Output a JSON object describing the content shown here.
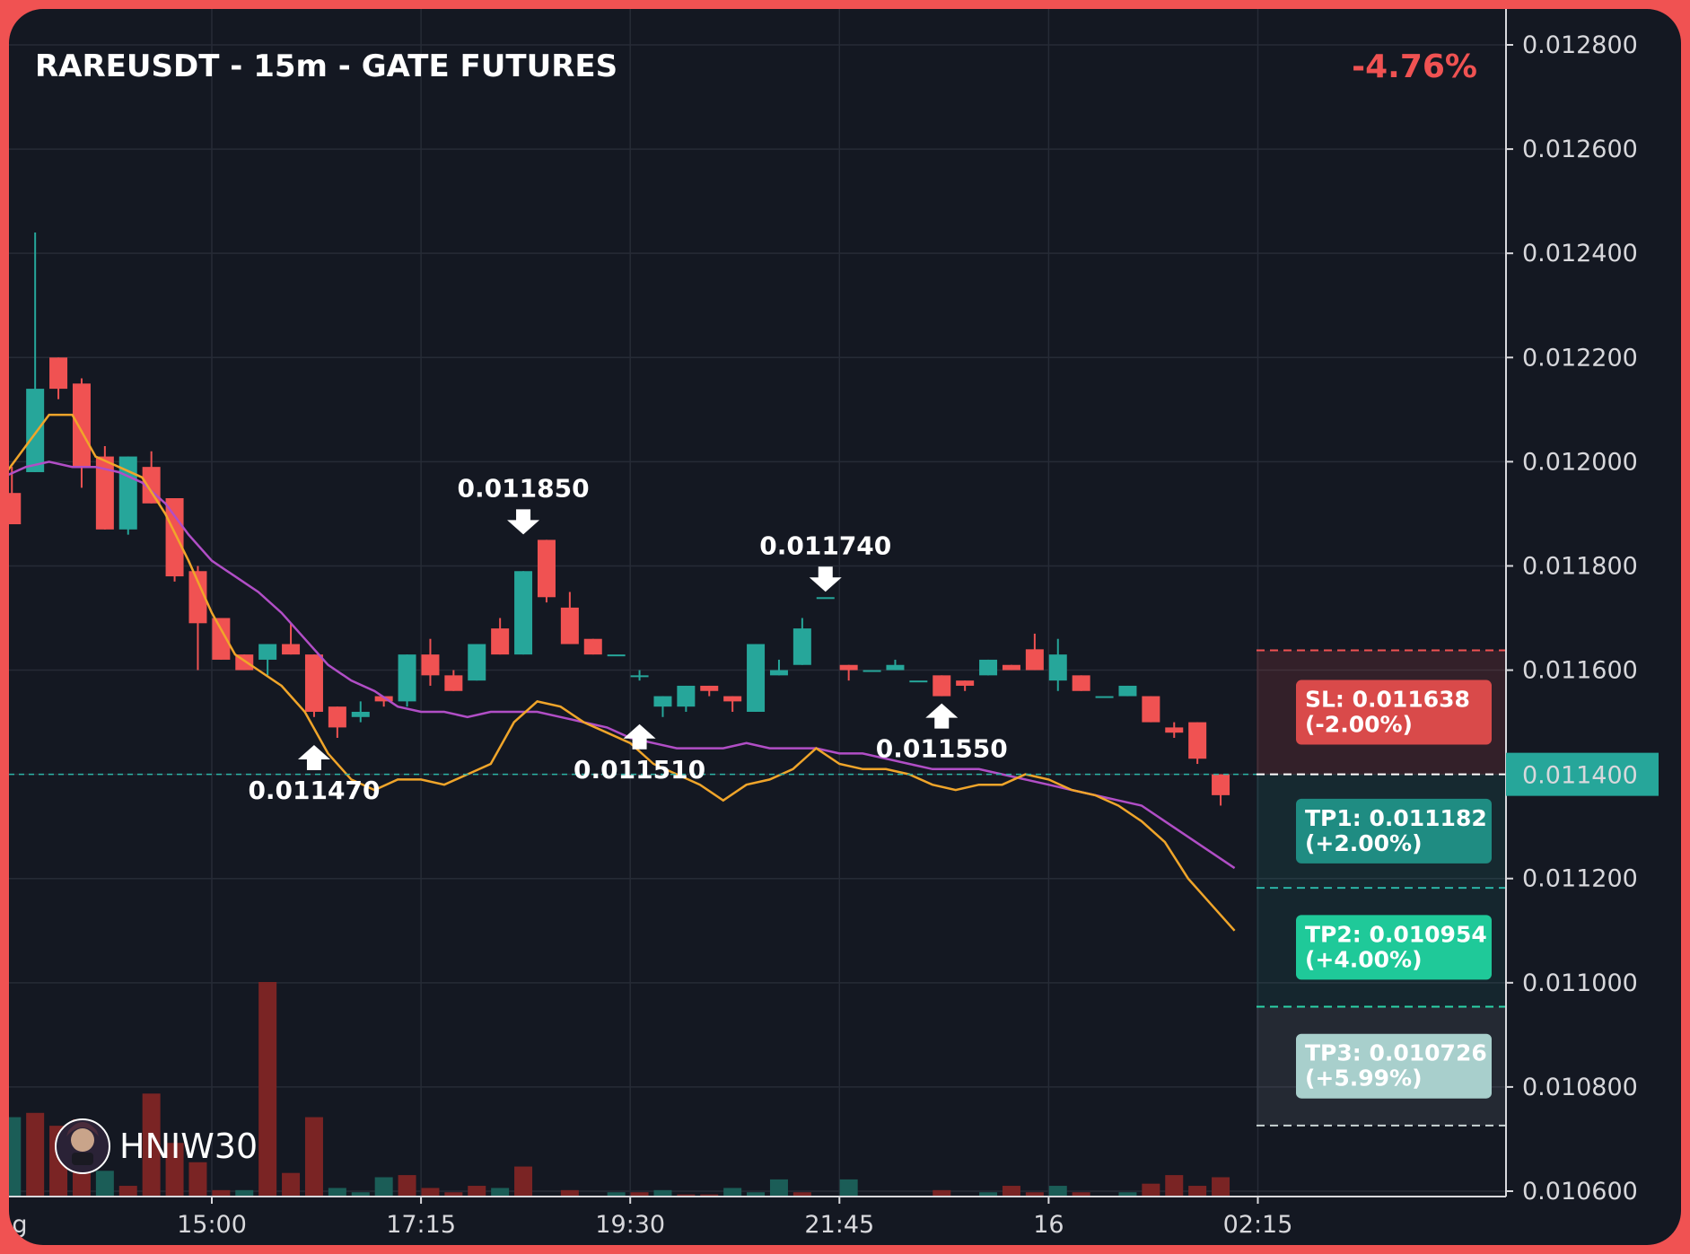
{
  "chart_data": {
    "type": "candlestick",
    "title": "RAREUSDT - 15m - GATE FUTURES",
    "change": "-4.76%",
    "price_axis": {
      "min": 0.0106,
      "max": 0.0128,
      "ticks": [
        "0.012800",
        "0.012600",
        "0.012400",
        "0.012200",
        "0.012000",
        "0.011800",
        "0.011600",
        "0.011400",
        "0.011200",
        "0.011000",
        "0.010800",
        "0.010600"
      ],
      "current_price_label": "0.011400",
      "current_price": 0.0114
    },
    "time_axis": {
      "labels": [
        {
          "text": "g",
          "index": -8.6
        },
        {
          "text": "15:00",
          "index": 0
        },
        {
          "text": "17:15",
          "index": 9
        },
        {
          "text": "19:30",
          "index": 18
        },
        {
          "text": "21:45",
          "index": 27
        },
        {
          "text": "16",
          "index": 36
        },
        {
          "text": "02:15",
          "index": 45
        }
      ]
    },
    "candles": [
      {
        "i": -8.6,
        "o": 0.01194,
        "h": 0.01199,
        "l": 0.01188,
        "c": 0.01188
      },
      {
        "i": -7.6,
        "o": 0.01198,
        "h": 0.01244,
        "l": 0.01198,
        "c": 0.01214
      },
      {
        "i": -6.6,
        "o": 0.0122,
        "h": 0.0122,
        "l": 0.01212,
        "c": 0.01214
      },
      {
        "i": -5.6,
        "o": 0.01215,
        "h": 0.01216,
        "l": 0.01195,
        "c": 0.01199
      },
      {
        "i": -4.6,
        "o": 0.01201,
        "h": 0.01203,
        "l": 0.01187,
        "c": 0.01187
      },
      {
        "i": -3.6,
        "o": 0.01187,
        "h": 0.01201,
        "l": 0.01186,
        "c": 0.01201
      },
      {
        "i": -2.6,
        "o": 0.01199,
        "h": 0.01202,
        "l": 0.01192,
        "c": 0.01192
      },
      {
        "i": -1.6,
        "o": 0.01193,
        "h": 0.01193,
        "l": 0.01177,
        "c": 0.01178
      },
      {
        "i": -0.6,
        "o": 0.01179,
        "h": 0.0118,
        "l": 0.0116,
        "c": 0.01169
      },
      {
        "i": 0.4,
        "o": 0.0117,
        "h": 0.0117,
        "l": 0.01162,
        "c": 0.01162
      },
      {
        "i": 1.4,
        "o": 0.01163,
        "h": 0.01163,
        "l": 0.0116,
        "c": 0.0116
      },
      {
        "i": 2.4,
        "o": 0.01162,
        "h": 0.01165,
        "l": 0.01159,
        "c": 0.01165
      },
      {
        "i": 3.4,
        "o": 0.01165,
        "h": 0.01169,
        "l": 0.01163,
        "c": 0.01163
      },
      {
        "i": 4.4,
        "o": 0.01163,
        "h": 0.01163,
        "l": 0.01151,
        "c": 0.01152
      },
      {
        "i": 5.4,
        "o": 0.01153,
        "h": 0.01153,
        "l": 0.01147,
        "c": 0.01149
      },
      {
        "i": 6.4,
        "o": 0.01151,
        "h": 0.01154,
        "l": 0.0115,
        "c": 0.01152
      },
      {
        "i": 7.4,
        "o": 0.01155,
        "h": 0.01155,
        "l": 0.01153,
        "c": 0.01154
      },
      {
        "i": 8.4,
        "o": 0.01154,
        "h": 0.01163,
        "l": 0.01153,
        "c": 0.01163
      },
      {
        "i": 9.4,
        "o": 0.01163,
        "h": 0.01166,
        "l": 0.01157,
        "c": 0.01159
      },
      {
        "i": 10.4,
        "o": 0.01159,
        "h": 0.0116,
        "l": 0.01156,
        "c": 0.01156
      },
      {
        "i": 11.4,
        "o": 0.01158,
        "h": 0.01165,
        "l": 0.01158,
        "c": 0.01165
      },
      {
        "i": 12.4,
        "o": 0.01168,
        "h": 0.0117,
        "l": 0.01163,
        "c": 0.01163
      },
      {
        "i": 13.4,
        "o": 0.01163,
        "h": 0.01179,
        "l": 0.01163,
        "c": 0.01179
      },
      {
        "i": 14.4,
        "o": 0.01185,
        "h": 0.01185,
        "l": 0.01173,
        "c": 0.01174
      },
      {
        "i": 15.4,
        "o": 0.01172,
        "h": 0.01175,
        "l": 0.01165,
        "c": 0.01165
      },
      {
        "i": 16.4,
        "o": 0.01166,
        "h": 0.01166,
        "l": 0.01163,
        "c": 0.01163
      },
      {
        "i": 17.4,
        "o": 0.01163,
        "h": 0.01163,
        "l": 0.01163,
        "c": 0.01163
      },
      {
        "i": 18.4,
        "o": 0.01159,
        "h": 0.0116,
        "l": 0.01158,
        "c": 0.01159
      },
      {
        "i": 19.4,
        "o": 0.01153,
        "h": 0.01155,
        "l": 0.01151,
        "c": 0.01155
      },
      {
        "i": 20.4,
        "o": 0.01153,
        "h": 0.01157,
        "l": 0.01152,
        "c": 0.01157
      },
      {
        "i": 21.4,
        "o": 0.01157,
        "h": 0.01157,
        "l": 0.01155,
        "c": 0.01156
      },
      {
        "i": 22.4,
        "o": 0.01155,
        "h": 0.01155,
        "l": 0.01152,
        "c": 0.01154
      },
      {
        "i": 23.4,
        "o": 0.01152,
        "h": 0.01165,
        "l": 0.01152,
        "c": 0.01165
      },
      {
        "i": 24.4,
        "o": 0.01159,
        "h": 0.01162,
        "l": 0.01159,
        "c": 0.0116
      },
      {
        "i": 25.4,
        "o": 0.01161,
        "h": 0.0117,
        "l": 0.01161,
        "c": 0.01168
      },
      {
        "i": 26.4,
        "o": 0.01174,
        "h": 0.01174,
        "l": 0.01174,
        "c": 0.01174
      },
      {
        "i": 27.4,
        "o": 0.01161,
        "h": 0.01161,
        "l": 0.01158,
        "c": 0.0116
      },
      {
        "i": 28.4,
        "o": 0.0116,
        "h": 0.0116,
        "l": 0.0116,
        "c": 0.0116
      },
      {
        "i": 29.4,
        "o": 0.0116,
        "h": 0.01162,
        "l": 0.0116,
        "c": 0.01161
      },
      {
        "i": 30.4,
        "o": 0.01158,
        "h": 0.01158,
        "l": 0.01158,
        "c": 0.01158
      },
      {
        "i": 31.4,
        "o": 0.01159,
        "h": 0.01159,
        "l": 0.01155,
        "c": 0.01155
      },
      {
        "i": 32.4,
        "o": 0.01158,
        "h": 0.01158,
        "l": 0.01156,
        "c": 0.01157
      },
      {
        "i": 33.4,
        "o": 0.01159,
        "h": 0.01162,
        "l": 0.01159,
        "c": 0.01162
      },
      {
        "i": 34.4,
        "o": 0.01161,
        "h": 0.01161,
        "l": 0.0116,
        "c": 0.0116
      },
      {
        "i": 35.4,
        "o": 0.01164,
        "h": 0.01167,
        "l": 0.0116,
        "c": 0.0116
      },
      {
        "i": 36.4,
        "o": 0.01158,
        "h": 0.01166,
        "l": 0.01156,
        "c": 0.01163
      },
      {
        "i": 37.4,
        "o": 0.01159,
        "h": 0.01159,
        "l": 0.01156,
        "c": 0.01156
      },
      {
        "i": 38.4,
        "o": 0.01155,
        "h": 0.01155,
        "l": 0.01155,
        "c": 0.01155
      },
      {
        "i": 39.4,
        "o": 0.01155,
        "h": 0.01157,
        "l": 0.01155,
        "c": 0.01157
      },
      {
        "i": 40.4,
        "o": 0.01155,
        "h": 0.01155,
        "l": 0.0115,
        "c": 0.0115
      },
      {
        "i": 41.4,
        "o": 0.01149,
        "h": 0.0115,
        "l": 0.01147,
        "c": 0.01148
      },
      {
        "i": 42.4,
        "o": 0.0115,
        "h": 0.0115,
        "l": 0.01142,
        "c": 0.01143
      },
      {
        "i": 43.4,
        "o": 0.0114,
        "h": 0.0114,
        "l": 0.01134,
        "c": 0.01136
      }
    ],
    "volumes": [
      {
        "i": -9.6,
        "v": 0.13,
        "d": "up"
      },
      {
        "i": -8.6,
        "v": 0.37,
        "d": "up"
      },
      {
        "i": -7.6,
        "v": 0.39,
        "d": "down"
      },
      {
        "i": -6.6,
        "v": 0.33,
        "d": "down"
      },
      {
        "i": -5.6,
        "v": 0.36,
        "d": "down"
      },
      {
        "i": -4.6,
        "v": 0.12,
        "d": "up"
      },
      {
        "i": -3.6,
        "v": 0.05,
        "d": "down"
      },
      {
        "i": -2.6,
        "v": 0.48,
        "d": "down"
      },
      {
        "i": -1.6,
        "v": 0.25,
        "d": "down"
      },
      {
        "i": -0.6,
        "v": 0.16,
        "d": "down"
      },
      {
        "i": 0.4,
        "v": 0.03,
        "d": "down"
      },
      {
        "i": 1.4,
        "v": 0.03,
        "d": "up"
      },
      {
        "i": 2.4,
        "v": 1.0,
        "d": "down"
      },
      {
        "i": 3.4,
        "v": 0.11,
        "d": "down"
      },
      {
        "i": 4.4,
        "v": 0.37,
        "d": "down"
      },
      {
        "i": 5.4,
        "v": 0.04,
        "d": "up"
      },
      {
        "i": 6.4,
        "v": 0.02,
        "d": "up"
      },
      {
        "i": 7.4,
        "v": 0.09,
        "d": "up"
      },
      {
        "i": 8.4,
        "v": 0.1,
        "d": "down"
      },
      {
        "i": 9.4,
        "v": 0.04,
        "d": "down"
      },
      {
        "i": 10.4,
        "v": 0.02,
        "d": "down"
      },
      {
        "i": 11.4,
        "v": 0.05,
        "d": "down"
      },
      {
        "i": 12.4,
        "v": 0.04,
        "d": "up"
      },
      {
        "i": 13.4,
        "v": 0.14,
        "d": "down"
      },
      {
        "i": 15.4,
        "v": 0.03,
        "d": "down"
      },
      {
        "i": 17.4,
        "v": 0.02,
        "d": "up"
      },
      {
        "i": 18.4,
        "v": 0.02,
        "d": "down"
      },
      {
        "i": 19.4,
        "v": 0.03,
        "d": "up"
      },
      {
        "i": 20.4,
        "v": 0.01,
        "d": "down"
      },
      {
        "i": 21.4,
        "v": 0.01,
        "d": "down"
      },
      {
        "i": 22.4,
        "v": 0.04,
        "d": "up"
      },
      {
        "i": 23.4,
        "v": 0.02,
        "d": "up"
      },
      {
        "i": 24.4,
        "v": 0.08,
        "d": "up"
      },
      {
        "i": 25.4,
        "v": 0.02,
        "d": "down"
      },
      {
        "i": 27.4,
        "v": 0.08,
        "d": "up"
      },
      {
        "i": 31.4,
        "v": 0.03,
        "d": "down"
      },
      {
        "i": 33.4,
        "v": 0.02,
        "d": "up"
      },
      {
        "i": 34.4,
        "v": 0.05,
        "d": "down"
      },
      {
        "i": 35.4,
        "v": 0.02,
        "d": "down"
      },
      {
        "i": 36.4,
        "v": 0.05,
        "d": "up"
      },
      {
        "i": 37.4,
        "v": 0.02,
        "d": "down"
      },
      {
        "i": 39.4,
        "v": 0.02,
        "d": "up"
      },
      {
        "i": 40.4,
        "v": 0.06,
        "d": "down"
      },
      {
        "i": 41.4,
        "v": 0.1,
        "d": "down"
      },
      {
        "i": 42.4,
        "v": 0.05,
        "d": "down"
      },
      {
        "i": 43.4,
        "v": 0.09,
        "d": "down"
      }
    ],
    "ma_fast": [
      [
        -9,
        0.01197
      ],
      [
        -8,
        0.01203
      ],
      [
        -7,
        0.01209
      ],
      [
        -6,
        0.01209
      ],
      [
        -5,
        0.01201
      ],
      [
        -4,
        0.01199
      ],
      [
        -3,
        0.01197
      ],
      [
        -2,
        0.0119
      ],
      [
        -1,
        0.01181
      ],
      [
        0,
        0.01171
      ],
      [
        1,
        0.01163
      ],
      [
        2,
        0.0116
      ],
      [
        3,
        0.01157
      ],
      [
        4,
        0.01152
      ],
      [
        5,
        0.01144
      ],
      [
        6,
        0.01139
      ],
      [
        7,
        0.01137
      ],
      [
        8,
        0.01139
      ],
      [
        9,
        0.01139
      ],
      [
        10,
        0.01138
      ],
      [
        11,
        0.0114
      ],
      [
        12,
        0.01142
      ],
      [
        13,
        0.0115
      ],
      [
        14,
        0.01154
      ],
      [
        15,
        0.01153
      ],
      [
        16,
        0.0115
      ],
      [
        17,
        0.01148
      ],
      [
        18,
        0.01146
      ],
      [
        19,
        0.01142
      ],
      [
        20,
        0.0114
      ],
      [
        21,
        0.01138
      ],
      [
        22,
        0.01135
      ],
      [
        23,
        0.01138
      ],
      [
        24,
        0.01139
      ],
      [
        25,
        0.01141
      ],
      [
        26,
        0.01145
      ],
      [
        27,
        0.01142
      ],
      [
        28,
        0.01141
      ],
      [
        29,
        0.01141
      ],
      [
        30,
        0.0114
      ],
      [
        31,
        0.01138
      ],
      [
        32,
        0.01137
      ],
      [
        33,
        0.01138
      ],
      [
        34,
        0.01138
      ],
      [
        35,
        0.0114
      ],
      [
        36,
        0.01139
      ],
      [
        37,
        0.01137
      ],
      [
        38,
        0.01136
      ],
      [
        39,
        0.01134
      ],
      [
        40,
        0.01131
      ],
      [
        41,
        0.01127
      ],
      [
        42,
        0.0112
      ],
      [
        43,
        0.01115
      ],
      [
        44,
        0.0111
      ]
    ],
    "ma_slow": [
      [
        -9,
        0.01197
      ],
      [
        -8,
        0.01199
      ],
      [
        -7,
        0.012
      ],
      [
        -6,
        0.01199
      ],
      [
        -5,
        0.01199
      ],
      [
        -4,
        0.01198
      ],
      [
        -3,
        0.01196
      ],
      [
        -2,
        0.01192
      ],
      [
        -1,
        0.01186
      ],
      [
        0,
        0.01181
      ],
      [
        1,
        0.01178
      ],
      [
        2,
        0.01175
      ],
      [
        3,
        0.01171
      ],
      [
        4,
        0.01166
      ],
      [
        5,
        0.01161
      ],
      [
        6,
        0.01158
      ],
      [
        7,
        0.01156
      ],
      [
        8,
        0.01153
      ],
      [
        9,
        0.01152
      ],
      [
        10,
        0.01152
      ],
      [
        11,
        0.01151
      ],
      [
        12,
        0.01152
      ],
      [
        13,
        0.01152
      ],
      [
        14,
        0.01152
      ],
      [
        15,
        0.01151
      ],
      [
        16,
        0.0115
      ],
      [
        17,
        0.01149
      ],
      [
        18,
        0.01147
      ],
      [
        19,
        0.01146
      ],
      [
        20,
        0.01145
      ],
      [
        21,
        0.01145
      ],
      [
        22,
        0.01145
      ],
      [
        23,
        0.01146
      ],
      [
        24,
        0.01145
      ],
      [
        25,
        0.01145
      ],
      [
        26,
        0.01145
      ],
      [
        27,
        0.01144
      ],
      [
        28,
        0.01144
      ],
      [
        29,
        0.01143
      ],
      [
        30,
        0.01142
      ],
      [
        31,
        0.01141
      ],
      [
        32,
        0.01141
      ],
      [
        33,
        0.01141
      ],
      [
        34,
        0.0114
      ],
      [
        35,
        0.01139
      ],
      [
        36,
        0.01138
      ],
      [
        37,
        0.01137
      ],
      [
        38,
        0.01136
      ],
      [
        39,
        0.01135
      ],
      [
        40,
        0.01134
      ],
      [
        41,
        0.01131
      ],
      [
        42,
        0.01128
      ],
      [
        43,
        0.01125
      ],
      [
        44,
        0.01122
      ]
    ],
    "annotations": [
      {
        "label": "0.011470",
        "i": 4.4,
        "price": 0.01147,
        "dir": "up"
      },
      {
        "label": "0.011850",
        "i": 13.4,
        "price": 0.01185,
        "dir": "down"
      },
      {
        "label": "0.011510",
        "i": 18.4,
        "price": 0.01151,
        "dir": "up"
      },
      {
        "label": "0.011740",
        "i": 26.4,
        "price": 0.01174,
        "dir": "down"
      },
      {
        "label": "0.011550",
        "i": 31.4,
        "price": 0.01155,
        "dir": "up"
      }
    ],
    "levels": {
      "sl": {
        "price": 0.011638,
        "line1": "SL: 0.011638",
        "line2": "(-2.00%)"
      },
      "entry": {
        "price": 0.0114
      },
      "tp1": {
        "price": 0.011182,
        "line1": "TP1: 0.011182",
        "line2": "(+2.00%)"
      },
      "tp2": {
        "price": 0.010954,
        "line1": "TP2: 0.010954",
        "line2": "(+4.00%)"
      },
      "tp3": {
        "price": 0.010726,
        "line1": "TP3: 0.010726",
        "line2": "(+5.99%)"
      }
    },
    "brand": "HNIW30",
    "colors": {
      "background": "#141822",
      "up": "#26a69a",
      "down": "#f05252",
      "ma_fast": "#f0a52a",
      "ma_slow": "#b14ec6",
      "sl_box": "#d94a4a",
      "tp1_box": "#1f8c82",
      "tp2_box": "#1fc999",
      "tp3_box": "#a8cfcc",
      "frame": "#f05252"
    }
  }
}
